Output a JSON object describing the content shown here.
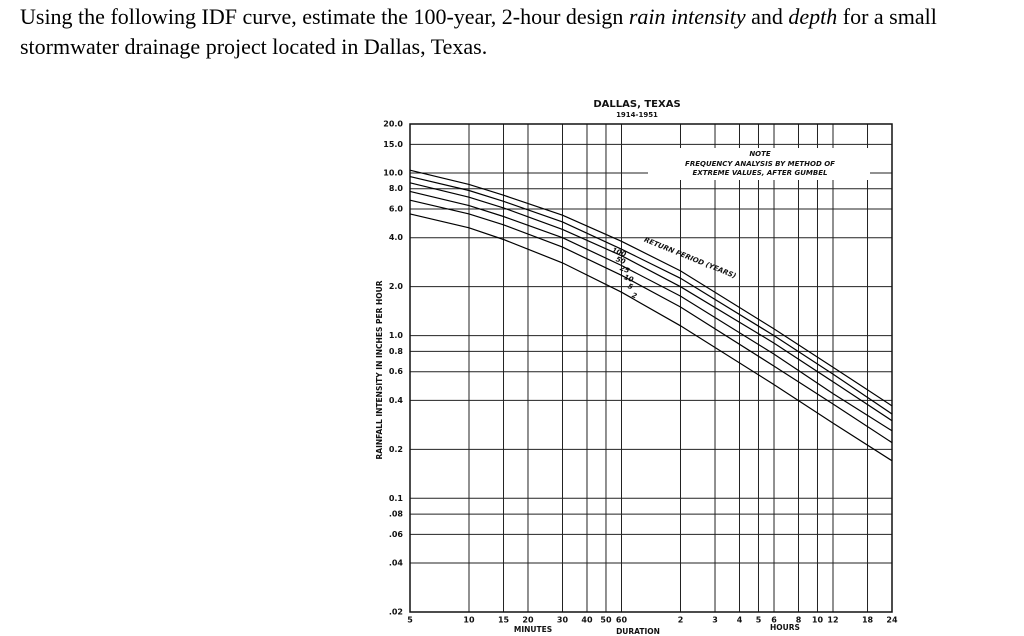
{
  "question": [
    "Using the following IDF curve, estimate the 100-year, 2-hour design ",
    "rain intensity",
    " and ",
    "depth",
    " for a small stormwater drainage project located in Dallas, Texas."
  ],
  "chart_data": {
    "type": "line",
    "title": "DALLAS, TEXAS",
    "subtitle": "1914-1951",
    "ylabel": "RAINFALL INTENSITY IN INCHES PER HOUR",
    "xlabel": "DURATION",
    "xunits": [
      "MINUTES",
      "HOURS"
    ],
    "annotations": [
      "NOTE",
      "FREQUENCY ANALYSIS BY METHOD OF",
      "EXTREME VALUES, AFTER GUMBEL",
      "RETURN PERIOD (YEARS)"
    ],
    "xscale": "log",
    "yscale": "log",
    "grid": true,
    "xlim": [
      5,
      1440
    ],
    "ylim": [
      0.02,
      20
    ],
    "xticks": [
      5,
      10,
      15,
      20,
      30,
      40,
      50,
      60,
      {
        "value": 120,
        "label": "2"
      },
      {
        "value": 180,
        "label": "3"
      },
      {
        "value": 240,
        "label": "4"
      },
      {
        "value": 300,
        "label": "5"
      },
      {
        "value": 360,
        "label": "6"
      },
      {
        "value": 480,
        "label": "8"
      },
      {
        "value": 600,
        "label": "10"
      },
      {
        "value": 720,
        "label": "12"
      },
      {
        "value": 1080,
        "label": "18"
      },
      {
        "value": 1440,
        "label": "24"
      }
    ],
    "yticks": [
      {
        "value": 20,
        "label": "20.0"
      },
      {
        "value": 15,
        "label": "15.0"
      },
      {
        "value": 10,
        "label": "10.0"
      },
      {
        "value": 8,
        "label": "8.0"
      },
      {
        "value": 6,
        "label": "6.0"
      },
      {
        "value": 4,
        "label": "4.0"
      },
      {
        "value": 2,
        "label": "2.0"
      },
      {
        "value": 1,
        "label": "1.0"
      },
      {
        "value": 0.8,
        "label": "0.8"
      },
      {
        "value": 0.6,
        "label": "0.6"
      },
      {
        "value": 0.4,
        "label": "0.4"
      },
      {
        "value": 0.2,
        "label": "0.2"
      },
      {
        "value": 0.1,
        "label": "0.1"
      },
      {
        "value": 0.08,
        "label": ".08"
      },
      {
        "value": 0.06,
        "label": ".06"
      },
      {
        "value": 0.04,
        "label": ".04"
      },
      {
        "value": 0.02,
        "label": ".02"
      }
    ],
    "x": [
      5,
      10,
      15,
      30,
      60,
      120,
      360,
      720,
      1440
    ],
    "series": [
      {
        "name": "100",
        "color": "#000",
        "values": [
          10.4,
          8.5,
          7.3,
          5.5,
          3.8,
          2.5,
          1.1,
          0.64,
          0.37
        ]
      },
      {
        "name": "50",
        "color": "#000",
        "values": [
          9.5,
          7.8,
          6.7,
          5.0,
          3.4,
          2.25,
          1.0,
          0.58,
          0.33
        ]
      },
      {
        "name": "25",
        "color": "#000",
        "values": [
          8.7,
          7.1,
          6.1,
          4.5,
          3.1,
          2.0,
          0.9,
          0.52,
          0.3
        ]
      },
      {
        "name": "10",
        "color": "#000",
        "values": [
          7.7,
          6.3,
          5.4,
          4.0,
          2.7,
          1.75,
          0.77,
          0.44,
          0.26
        ]
      },
      {
        "name": "5",
        "color": "#000",
        "values": [
          6.8,
          5.6,
          4.8,
          3.5,
          2.35,
          1.5,
          0.65,
          0.38,
          0.22
        ]
      },
      {
        "name": "2",
        "color": "#000",
        "values": [
          5.6,
          4.6,
          3.9,
          2.8,
          1.85,
          1.15,
          0.5,
          0.29,
          0.17
        ]
      }
    ]
  }
}
